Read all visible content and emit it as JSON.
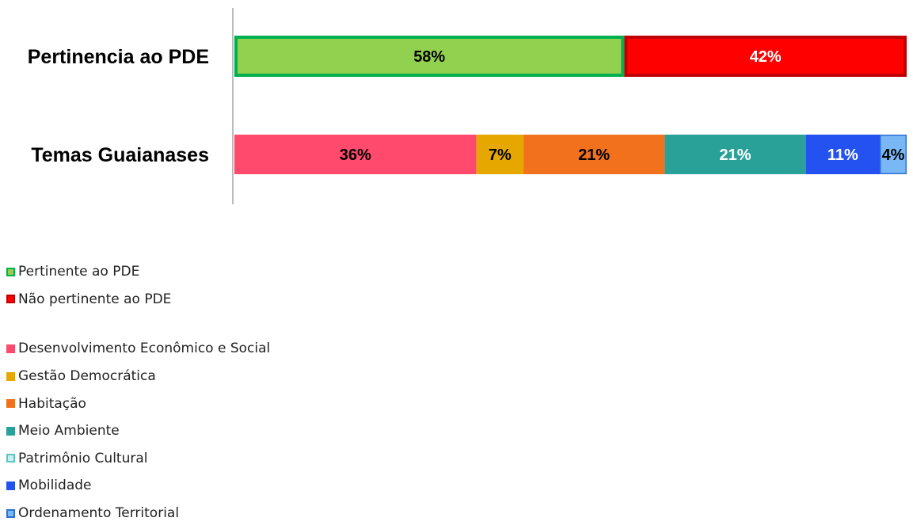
{
  "chart_data": {
    "type": "bar",
    "orientation": "horizontal",
    "stacked": "percent",
    "categories": [
      "Pertinencia ao PDE",
      "Temas Guaianases"
    ],
    "xlim": [
      0,
      100
    ],
    "grid": false,
    "legend_position": "bottom-left",
    "groups": [
      {
        "category": "Pertinencia ao PDE",
        "segments": [
          {
            "name": "Pertinente ao PDE",
            "value": 58,
            "label": "58%",
            "color": "#92d050",
            "border": "#00b050",
            "text_color": "#000000"
          },
          {
            "name": "Não pertinente ao PDE",
            "value": 42,
            "label": "42%",
            "color": "#ff0000",
            "border": "#c00000",
            "text_color": "#ffffff"
          }
        ]
      },
      {
        "category": "Temas Guaianases",
        "segments": [
          {
            "name": "Desenvolvimento Econômico e Social",
            "value": 36,
            "label": "36%",
            "color": "#ff4a6e",
            "border": "",
            "text_color": "#000000"
          },
          {
            "name": "Gestão Democrática",
            "value": 7,
            "label": "7%",
            "color": "#e6a800",
            "border": "",
            "text_color": "#000000"
          },
          {
            "name": "Habitação",
            "value": 21,
            "label": "21%",
            "color": "#f2711c",
            "border": "",
            "text_color": "#000000"
          },
          {
            "name": "Meio Ambiente",
            "value": 21,
            "label": "21%",
            "color": "#2aa198",
            "border": "",
            "text_color": "#ffffff"
          },
          {
            "name": "Mobilidade",
            "value": 11,
            "label": "11%",
            "color": "#2352f0",
            "border": "",
            "text_color": "#ffffff"
          },
          {
            "name": "Ordenamento Territorial",
            "value": 4,
            "label": "4%",
            "color": "#7ab7f5",
            "border": "#2f6fd6",
            "text_color": "#000000"
          }
        ]
      }
    ]
  },
  "legend": {
    "groups": [
      [
        {
          "label": "Pertinente ao PDE",
          "fill": "#92d050",
          "border": "#00b050"
        },
        {
          "label": "Não pertinente ao PDE",
          "fill": "#ff0000",
          "border": "#c00000"
        }
      ],
      [
        {
          "label": "Desenvolvimento Econômico e Social",
          "fill": "#ff4a6e",
          "border": "#ff4a6e"
        },
        {
          "label": "Gestão Democrática",
          "fill": "#e6a800",
          "border": "#e6a800"
        },
        {
          "label": "Habitação",
          "fill": "#f2711c",
          "border": "#f2711c"
        },
        {
          "label": "Meio Ambiente",
          "fill": "#2aa198",
          "border": "#2aa198"
        },
        {
          "label": "Patrimônio Cultural",
          "fill": "#c8f0ee",
          "border": "#5ec4bd"
        },
        {
          "label": "Mobilidade",
          "fill": "#2352f0",
          "border": "#2352f0"
        },
        {
          "label": "Ordenamento Territorial",
          "fill": "#7ab7f5",
          "border": "#2f6fd6"
        }
      ]
    ]
  }
}
